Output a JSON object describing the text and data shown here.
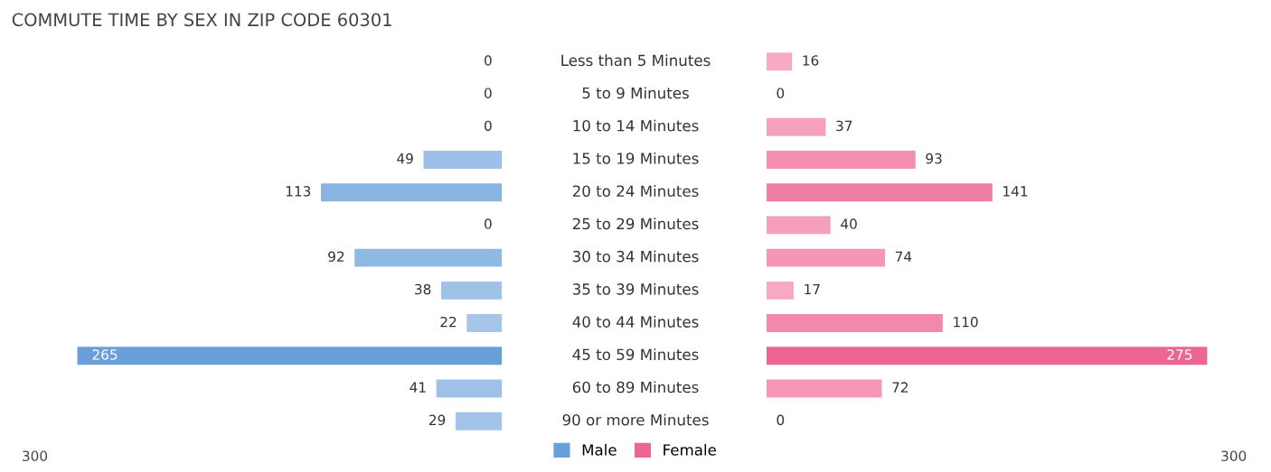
{
  "chart_data": [
    {
      "type": "bar",
      "orientation": "horizontal",
      "title": "COMMUTE TIME BY SEX IN ZIP CODE 60301",
      "categories": [
        "Less than 5 Minutes",
        "5 to 9 Minutes",
        "10 to 14 Minutes",
        "15 to 19 Minutes",
        "20 to 24 Minutes",
        "25 to 29 Minutes",
        "30 to 34 Minutes",
        "35 to 39 Minutes",
        "40 to 44 Minutes",
        "45 to 59 Minutes",
        "60 to 89 Minutes",
        "90 or more Minutes"
      ],
      "series": [
        {
          "name": "Male",
          "color": "#6a9fd9",
          "values": [
            0,
            0,
            0,
            49,
            113,
            0,
            92,
            38,
            22,
            265,
            41,
            29
          ],
          "colors": [
            "#a8c8eb",
            "#a8c8eb",
            "#a8c8eb",
            "#9dc0e8",
            "#8ab4e2",
            "#a8c8eb",
            "#90b8e4",
            "#a0c2e9",
            "#a5c6ea",
            "#6a9fd9",
            "#9fc1e8",
            "#a3c4e9"
          ]
        }
      ],
      "data_labels": true,
      "annotations": [
        "300"
      ],
      "legend": "bottom"
    },
    {
      "type": "bar",
      "orientation": "horizontal",
      "categories": [
        null,
        null,
        null,
        null,
        null,
        null,
        null,
        null,
        null,
        null,
        null,
        null
      ],
      "series": [
        {
          "name": "Female",
          "color": "#ed6592",
          "values": [
            16,
            0,
            37,
            93,
            141,
            40,
            74,
            17,
            110,
            275,
            72,
            0
          ],
          "colors": [
            "#f7aac3",
            "#f8b0c8",
            "#f5a1bc",
            "#f48fb0",
            "#f07fa4",
            "#f5a0bb",
            "#f596b5",
            "#f7a9c2",
            "#f288ab",
            "#ed6592",
            "#f597b5",
            "#f8b0c8"
          ]
        }
      ],
      "data_labels": true,
      "annotations": [
        "300"
      ],
      "legend": "bottom"
    }
  ]
}
